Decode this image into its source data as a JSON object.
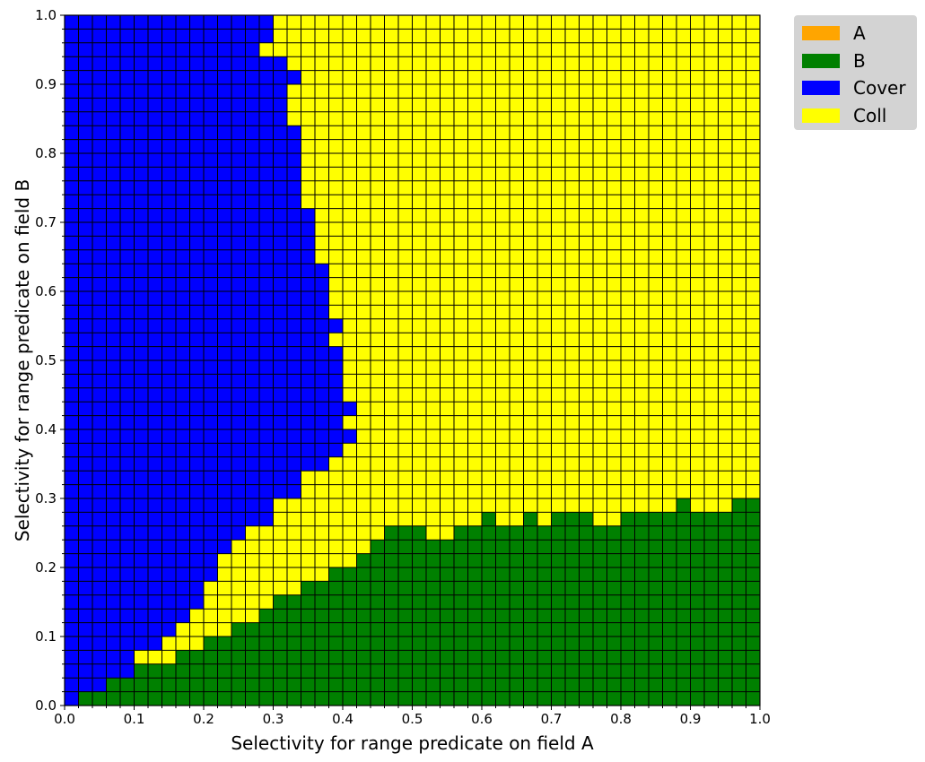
{
  "chart_data": {
    "type": "heatmap",
    "title": "",
    "xlabel": "Selectivity for range predicate on field A",
    "ylabel": "Selectivity for range predicate on field B",
    "xlim": [
      0,
      1
    ],
    "ylim": [
      0,
      1
    ],
    "xticks": [
      "0.0",
      "0.1",
      "0.2",
      "0.3",
      "0.4",
      "0.5",
      "0.6",
      "0.7",
      "0.8",
      "0.9",
      "1.0"
    ],
    "yticks": [
      "0.0",
      "0.1",
      "0.2",
      "0.3",
      "0.4",
      "0.5",
      "0.6",
      "0.7",
      "0.8",
      "0.9",
      "1.0"
    ],
    "grid_resolution": 0.02,
    "legend": {
      "placement": "outside-top-right",
      "items": [
        {
          "label": "A",
          "color": "#ffa500"
        },
        {
          "label": "B",
          "color": "#008000"
        },
        {
          "label": "Cover",
          "color": "#0000ff"
        },
        {
          "label": "Coll",
          "color": "#ffff00"
        }
      ]
    },
    "cell_colors": {
      "B": "#008000",
      "Cover": "#0000ff",
      "Coll": "#ffff00"
    },
    "cover_region_upper_x_by_row": [
      0.02,
      0.06,
      0.1,
      0.1,
      0.14,
      0.16,
      0.18,
      0.2,
      0.2,
      0.22,
      0.22,
      0.24,
      0.26,
      0.3,
      0.3,
      0.34,
      0.34,
      0.38,
      0.4,
      0.42,
      0.4,
      0.42,
      0.4,
      0.4,
      0.4,
      0.4,
      0.38,
      0.4,
      0.38,
      0.38,
      0.38,
      0.38,
      0.36,
      0.36,
      0.36,
      0.36,
      0.34,
      0.34,
      0.34,
      0.34,
      0.34,
      0.34,
      0.32,
      0.32,
      0.32,
      0.34,
      0.32,
      0.28,
      0.3,
      0.3,
      0.34,
      0.34,
      0.32,
      0.32,
      0.3,
      0.28,
      0.3,
      0.3,
      0.3,
      0.3,
      0.3,
      0.3,
      0.3,
      0.3,
      0.3,
      0.3,
      0.3,
      0.3,
      0.3,
      0.3,
      0.3,
      0.3,
      0.3,
      0.3,
      0.3,
      0.3,
      0.3,
      0.3,
      0.3,
      0.3,
      0.3,
      0.3,
      0.3,
      0.3,
      0.3,
      0.3,
      0.3,
      0.3,
      0.3,
      0.3,
      0.28,
      0.28,
      0.3,
      0.3,
      0.3,
      0.3,
      0.3,
      0.3,
      0.3,
      0.3
    ],
    "b_region_upper_y_by_column": [
      0.0,
      0.02,
      0.02,
      0.04,
      0.04,
      0.06,
      0.06,
      0.06,
      0.08,
      0.08,
      0.1,
      0.1,
      0.12,
      0.12,
      0.14,
      0.16,
      0.16,
      0.18,
      0.18,
      0.2,
      0.2,
      0.22,
      0.24,
      0.26,
      0.26,
      0.26,
      0.24,
      0.24,
      0.26,
      0.26,
      0.28,
      0.26,
      0.26,
      0.28,
      0.26,
      0.28,
      0.28,
      0.28,
      0.26,
      0.26,
      0.28,
      0.28,
      0.28,
      0.28,
      0.3,
      0.28,
      0.28,
      0.28,
      0.3,
      0.3
    ]
  }
}
